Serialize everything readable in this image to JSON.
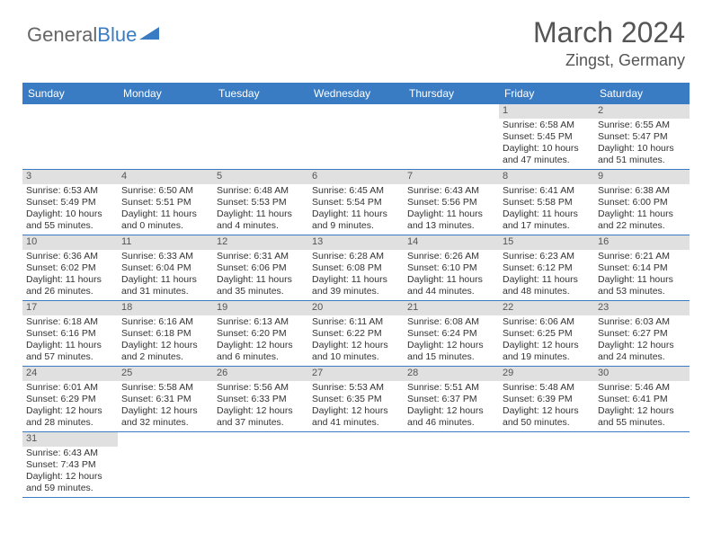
{
  "brand": {
    "general": "General",
    "blue": "Blue"
  },
  "title": "March 2024",
  "location": "Zingst, Germany",
  "colors": {
    "header_bg": "#3a7cc4",
    "daynum_bg": "#e0e0e0",
    "row_border": "#3a7cc4",
    "text": "#333333",
    "muted": "#555555"
  },
  "weekdays": [
    "Sunday",
    "Monday",
    "Tuesday",
    "Wednesday",
    "Thursday",
    "Friday",
    "Saturday"
  ],
  "days": [
    null,
    null,
    null,
    null,
    null,
    {
      "n": "1",
      "sr": "Sunrise: 6:58 AM",
      "ss": "Sunset: 5:45 PM",
      "dl": "Daylight: 10 hours and 47 minutes."
    },
    {
      "n": "2",
      "sr": "Sunrise: 6:55 AM",
      "ss": "Sunset: 5:47 PM",
      "dl": "Daylight: 10 hours and 51 minutes."
    },
    {
      "n": "3",
      "sr": "Sunrise: 6:53 AM",
      "ss": "Sunset: 5:49 PM",
      "dl": "Daylight: 10 hours and 55 minutes."
    },
    {
      "n": "4",
      "sr": "Sunrise: 6:50 AM",
      "ss": "Sunset: 5:51 PM",
      "dl": "Daylight: 11 hours and 0 minutes."
    },
    {
      "n": "5",
      "sr": "Sunrise: 6:48 AM",
      "ss": "Sunset: 5:53 PM",
      "dl": "Daylight: 11 hours and 4 minutes."
    },
    {
      "n": "6",
      "sr": "Sunrise: 6:45 AM",
      "ss": "Sunset: 5:54 PM",
      "dl": "Daylight: 11 hours and 9 minutes."
    },
    {
      "n": "7",
      "sr": "Sunrise: 6:43 AM",
      "ss": "Sunset: 5:56 PM",
      "dl": "Daylight: 11 hours and 13 minutes."
    },
    {
      "n": "8",
      "sr": "Sunrise: 6:41 AM",
      "ss": "Sunset: 5:58 PM",
      "dl": "Daylight: 11 hours and 17 minutes."
    },
    {
      "n": "9",
      "sr": "Sunrise: 6:38 AM",
      "ss": "Sunset: 6:00 PM",
      "dl": "Daylight: 11 hours and 22 minutes."
    },
    {
      "n": "10",
      "sr": "Sunrise: 6:36 AM",
      "ss": "Sunset: 6:02 PM",
      "dl": "Daylight: 11 hours and 26 minutes."
    },
    {
      "n": "11",
      "sr": "Sunrise: 6:33 AM",
      "ss": "Sunset: 6:04 PM",
      "dl": "Daylight: 11 hours and 31 minutes."
    },
    {
      "n": "12",
      "sr": "Sunrise: 6:31 AM",
      "ss": "Sunset: 6:06 PM",
      "dl": "Daylight: 11 hours and 35 minutes."
    },
    {
      "n": "13",
      "sr": "Sunrise: 6:28 AM",
      "ss": "Sunset: 6:08 PM",
      "dl": "Daylight: 11 hours and 39 minutes."
    },
    {
      "n": "14",
      "sr": "Sunrise: 6:26 AM",
      "ss": "Sunset: 6:10 PM",
      "dl": "Daylight: 11 hours and 44 minutes."
    },
    {
      "n": "15",
      "sr": "Sunrise: 6:23 AM",
      "ss": "Sunset: 6:12 PM",
      "dl": "Daylight: 11 hours and 48 minutes."
    },
    {
      "n": "16",
      "sr": "Sunrise: 6:21 AM",
      "ss": "Sunset: 6:14 PM",
      "dl": "Daylight: 11 hours and 53 minutes."
    },
    {
      "n": "17",
      "sr": "Sunrise: 6:18 AM",
      "ss": "Sunset: 6:16 PM",
      "dl": "Daylight: 11 hours and 57 minutes."
    },
    {
      "n": "18",
      "sr": "Sunrise: 6:16 AM",
      "ss": "Sunset: 6:18 PM",
      "dl": "Daylight: 12 hours and 2 minutes."
    },
    {
      "n": "19",
      "sr": "Sunrise: 6:13 AM",
      "ss": "Sunset: 6:20 PM",
      "dl": "Daylight: 12 hours and 6 minutes."
    },
    {
      "n": "20",
      "sr": "Sunrise: 6:11 AM",
      "ss": "Sunset: 6:22 PM",
      "dl": "Daylight: 12 hours and 10 minutes."
    },
    {
      "n": "21",
      "sr": "Sunrise: 6:08 AM",
      "ss": "Sunset: 6:24 PM",
      "dl": "Daylight: 12 hours and 15 minutes."
    },
    {
      "n": "22",
      "sr": "Sunrise: 6:06 AM",
      "ss": "Sunset: 6:25 PM",
      "dl": "Daylight: 12 hours and 19 minutes."
    },
    {
      "n": "23",
      "sr": "Sunrise: 6:03 AM",
      "ss": "Sunset: 6:27 PM",
      "dl": "Daylight: 12 hours and 24 minutes."
    },
    {
      "n": "24",
      "sr": "Sunrise: 6:01 AM",
      "ss": "Sunset: 6:29 PM",
      "dl": "Daylight: 12 hours and 28 minutes."
    },
    {
      "n": "25",
      "sr": "Sunrise: 5:58 AM",
      "ss": "Sunset: 6:31 PM",
      "dl": "Daylight: 12 hours and 32 minutes."
    },
    {
      "n": "26",
      "sr": "Sunrise: 5:56 AM",
      "ss": "Sunset: 6:33 PM",
      "dl": "Daylight: 12 hours and 37 minutes."
    },
    {
      "n": "27",
      "sr": "Sunrise: 5:53 AM",
      "ss": "Sunset: 6:35 PM",
      "dl": "Daylight: 12 hours and 41 minutes."
    },
    {
      "n": "28",
      "sr": "Sunrise: 5:51 AM",
      "ss": "Sunset: 6:37 PM",
      "dl": "Daylight: 12 hours and 46 minutes."
    },
    {
      "n": "29",
      "sr": "Sunrise: 5:48 AM",
      "ss": "Sunset: 6:39 PM",
      "dl": "Daylight: 12 hours and 50 minutes."
    },
    {
      "n": "30",
      "sr": "Sunrise: 5:46 AM",
      "ss": "Sunset: 6:41 PM",
      "dl": "Daylight: 12 hours and 55 minutes."
    },
    {
      "n": "31",
      "sr": "Sunrise: 6:43 AM",
      "ss": "Sunset: 7:43 PM",
      "dl": "Daylight: 12 hours and 59 minutes."
    },
    null,
    null,
    null,
    null,
    null,
    null
  ]
}
